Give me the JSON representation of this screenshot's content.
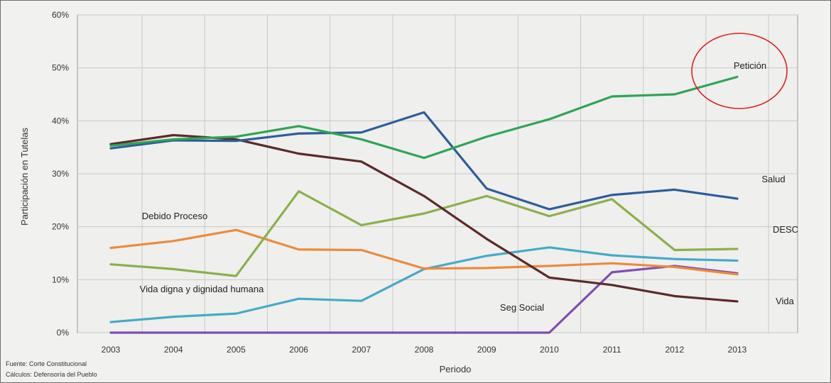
{
  "chart_data": {
    "type": "line",
    "xlabel": "Periodo",
    "ylabel": "Participación en Tutelas",
    "ylim": [
      0,
      60
    ],
    "x": [
      "2003",
      "2004",
      "2005",
      "2006",
      "2007",
      "2008",
      "2009",
      "2010",
      "2011",
      "2012",
      "2013"
    ],
    "yticks": [
      "0%",
      "10%",
      "20%",
      "30%",
      "40%",
      "50%",
      "60%"
    ],
    "grid": true,
    "series": [
      {
        "name": "Petición",
        "color": "#2ea554",
        "values": [
          35.3,
          36.5,
          37,
          39,
          36.5,
          33,
          37,
          40.3,
          44.6,
          45,
          48.3
        ]
      },
      {
        "name": "Salud",
        "color": "#2e5d9a",
        "values": [
          34.8,
          36.3,
          36.2,
          37.6,
          37.8,
          41.6,
          27.2,
          23.3,
          26,
          27,
          25.3
        ]
      },
      {
        "name": "DESC",
        "color": "#8bb04a",
        "values": [
          12.9,
          12,
          10.7,
          26.7,
          20.3,
          22.5,
          25.8,
          22,
          25.2,
          15.6,
          15.8
        ]
      },
      {
        "name": "Debido Proceso",
        "color": "#ea8b3d",
        "values": [
          16,
          17.3,
          19.4,
          15.7,
          15.6,
          12.1,
          12.2,
          12.6,
          13.1,
          12.4,
          11
        ]
      },
      {
        "name": "Seg Social",
        "color": "#45aac8",
        "values": [
          2,
          3,
          3.6,
          6.4,
          6,
          12,
          14.5,
          16.1,
          14.6,
          13.9,
          13.6
        ]
      },
      {
        "name": "Vida",
        "color": "#5c2a29",
        "values": [
          35.6,
          37.3,
          36.5,
          33.8,
          32.3,
          25.8,
          17.7,
          10.4,
          9,
          6.9,
          5.9
        ]
      },
      {
        "name": "Vida digna y dignidad humana",
        "color": "#7e4fb0",
        "values": [
          0,
          0,
          0,
          0,
          0,
          0,
          0,
          0,
          11.4,
          12.6,
          11.2
        ]
      }
    ],
    "labels": [
      {
        "text": "Petición",
        "series": "Petición"
      },
      {
        "text": "Salud",
        "series": "Salud"
      },
      {
        "text": "DESC",
        "series": "DESC"
      },
      {
        "text": "Debido Proceso",
        "series": "Debido Proceso"
      },
      {
        "text": "Vida digna y dignidad humana",
        "series": "Vida digna y dignidad humana"
      },
      {
        "text": "Seg Social",
        "series": "Seg Social"
      },
      {
        "text": "Vida",
        "series": "Vida"
      }
    ],
    "annotation": {
      "type": "circle",
      "target": "Petición",
      "color": "#e02020"
    }
  },
  "source": {
    "line1": "Fuente: Corte Constitucional",
    "line2": "Cálculos: Defensoría del Pueblo"
  }
}
